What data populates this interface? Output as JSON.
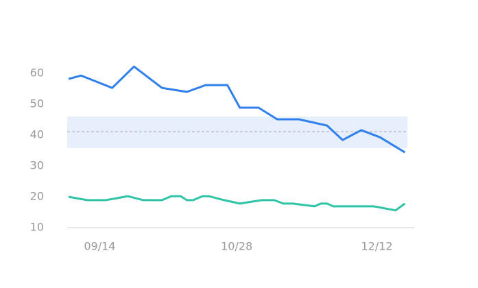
{
  "chart_data": {
    "type": "line",
    "xlim": [
      "09/04",
      "12/24"
    ],
    "xticks": [
      "09/14",
      "10/28",
      "12/12"
    ],
    "ylim": [
      10,
      70
    ],
    "yticks": [
      10,
      20,
      30,
      40,
      50,
      60
    ],
    "band": [
      35.8,
      46
    ],
    "band_color": "#e8effc",
    "reference": 41.1,
    "series": [
      {
        "color": "#2f80ed",
        "x": [
          "09/04",
          "09/08",
          "09/18",
          "09/25",
          "10/04",
          "10/12",
          "10/18",
          "10/25",
          "10/29",
          "11/04",
          "11/10",
          "11/17",
          "11/26",
          "12/01",
          "12/07",
          "12/13",
          "12/21"
        ],
        "values": [
          58.2,
          59.3,
          55.3,
          62.2,
          55.3,
          54,
          56.2,
          56.2,
          48.9,
          48.9,
          45.1,
          45.1,
          43.1,
          38.4,
          41.6,
          39.3,
          34.4
        ]
      },
      {
        "color": "#2ec4a6",
        "x": [
          "09/04",
          "09/10",
          "09/16",
          "09/23",
          "09/28",
          "10/04",
          "10/07",
          "10/10",
          "10/12",
          "10/14",
          "10/17",
          "10/19",
          "10/24",
          "10/29",
          "11/05",
          "11/09",
          "11/12",
          "11/15",
          "11/22",
          "11/24",
          "11/26",
          "11/28",
          "12/11",
          "12/18",
          "12/21"
        ],
        "values": [
          20,
          18.9,
          18.9,
          20.2,
          18.9,
          18.9,
          20.2,
          20.2,
          18.9,
          18.9,
          20.2,
          20.2,
          18.9,
          17.8,
          18.9,
          18.9,
          17.8,
          17.8,
          16.9,
          17.8,
          17.8,
          16.9,
          16.9,
          15.6,
          17.8
        ]
      }
    ]
  }
}
